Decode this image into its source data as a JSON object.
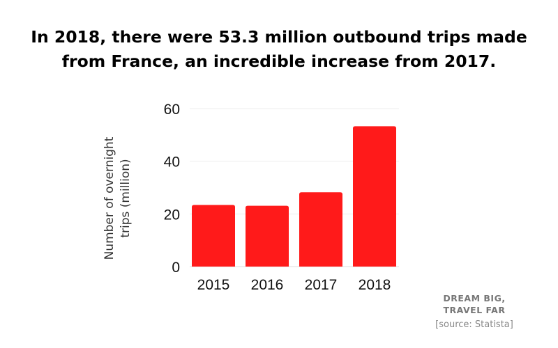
{
  "title_lines": [
    "In 2018, there were 53.3 million outbound trips made",
    "from France, an incredible increase from 2017."
  ],
  "brand_lines": [
    "DREAM BIG,",
    "TRAVEL FAR"
  ],
  "source": "[source: Statista]",
  "chart_data": {
    "type": "bar",
    "title": "In 2018, there were 53.3 million outbound trips made from France, an incredible increase from 2017.",
    "categories": [
      "2015",
      "2016",
      "2017",
      "2018"
    ],
    "values": [
      23.4,
      23.1,
      28.2,
      53.3
    ],
    "xlabel": "",
    "ylabel_lines": [
      "Number of overnight",
      "trips (million)"
    ],
    "ylim": [
      0,
      60
    ],
    "yticks": [
      "0",
      "20",
      "40",
      "60"
    ],
    "grid": true,
    "bar_color": "#ff1a1a"
  }
}
